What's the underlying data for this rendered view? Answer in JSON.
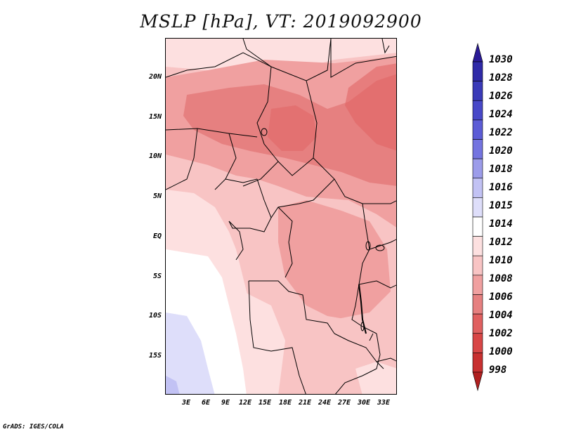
{
  "title": "MSLP [hPa], VT: 2019092900",
  "credit": "GrADS: IGES/COLA",
  "lat_labels": [
    "20N",
    "15N",
    "10N",
    "5N",
    "EQ",
    "5S",
    "10S",
    "15S"
  ],
  "lon_labels": [
    "3E",
    "6E",
    "9E",
    "12E",
    "15E",
    "18E",
    "21E",
    "24E",
    "27E",
    "30E",
    "33E"
  ],
  "colorbar": {
    "levels": [
      {
        "label": "1030",
        "color": "#2a1a96"
      },
      {
        "label": "1028",
        "color": "#2f2aa8"
      },
      {
        "label": "1026",
        "color": "#3a3ab8"
      },
      {
        "label": "1024",
        "color": "#4848c8"
      },
      {
        "label": "1022",
        "color": "#5c5cd6"
      },
      {
        "label": "1020",
        "color": "#7474e0"
      },
      {
        "label": "1018",
        "color": "#9c9cea"
      },
      {
        "label": "1016",
        "color": "#c2c2f4"
      },
      {
        "label": "1015",
        "color": "#dedefa"
      },
      {
        "label": "1014",
        "color": "#ffffff"
      },
      {
        "label": "1012",
        "color": "#fde0e0"
      },
      {
        "label": "1010",
        "color": "#f8c4c4"
      },
      {
        "label": "1008",
        "color": "#f0a0a0"
      },
      {
        "label": "1006",
        "color": "#e68080"
      },
      {
        "label": "1004",
        "color": "#e06060"
      },
      {
        "label": "1002",
        "color": "#d84646"
      },
      {
        "label": "1000",
        "color": "#c83030"
      },
      {
        "label": "998",
        "color": "#b02020"
      }
    ]
  }
}
